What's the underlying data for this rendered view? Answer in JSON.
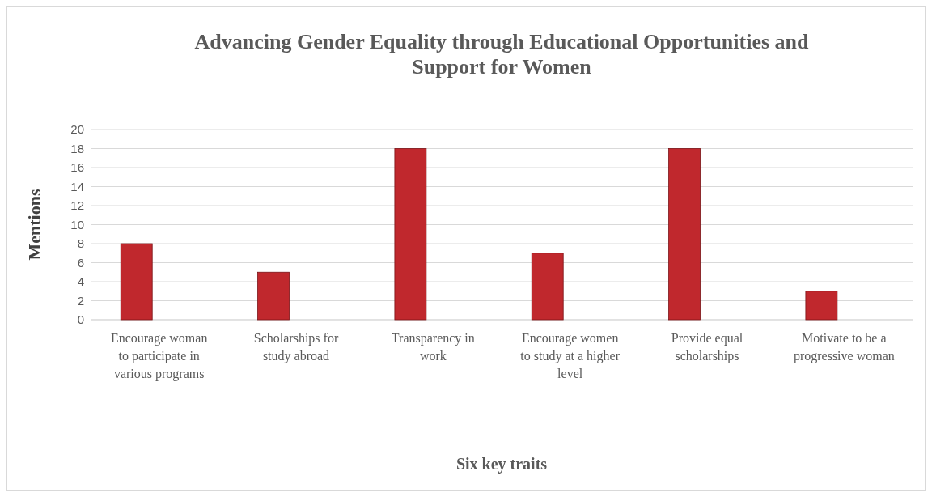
{
  "chart_data": {
    "type": "bar",
    "title": "Advancing Gender Equality through Educational Opportunities and Support for Women",
    "xlabel": "Six key traits",
    "ylabel": "Mentions",
    "categories": [
      "Encourage woman to participate in various programs",
      "Scholarships for study abroad",
      "Transparency in work",
      "Encourage women to study at a higher level",
      "Provide equal scholarships",
      "Motivate to be a progressive woman"
    ],
    "values": [
      8,
      5,
      18,
      7,
      18,
      3
    ],
    "color": "#c0282d",
    "ylim": [
      0,
      20
    ],
    "yticks": [
      0,
      2,
      4,
      6,
      8,
      10,
      12,
      14,
      16,
      18,
      20
    ],
    "grid": "y"
  }
}
